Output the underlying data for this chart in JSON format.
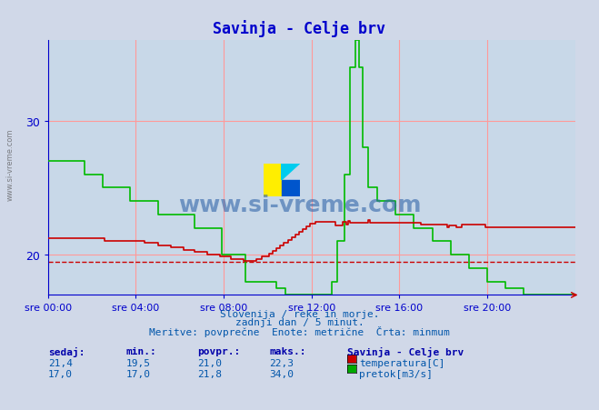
{
  "title": "Savinja - Celje brv",
  "title_color": "#0000cc",
  "bg_color": "#d0d8e8",
  "plot_bg_color": "#c8d8e8",
  "grid_color_h": "#ff9999",
  "grid_color_v": "#ff9999",
  "x_ticks_labels": [
    "sre 00:00",
    "sre 04:00",
    "sre 08:00",
    "sre 12:00",
    "sre 16:00",
    "sre 20:00"
  ],
  "x_ticks_pos": [
    0,
    48,
    96,
    144,
    192,
    240
  ],
  "y_ticks": [
    20,
    30
  ],
  "ylim": [
    17,
    36
  ],
  "xlim": [
    0,
    288
  ],
  "min_line_value": 19.5,
  "footer_lines": [
    "Slovenija / reke in morje.",
    "zadnji dan / 5 minut.",
    "Meritve: povprečne  Enote: metrične  Črta: minmum"
  ],
  "table_headers": [
    "sedaj:",
    "min.:",
    "povpr.:",
    "maks.:"
  ],
  "table_row1": [
    "21,4",
    "19,5",
    "21,0",
    "22,3"
  ],
  "table_row2": [
    "17,0",
    "17,0",
    "21,8",
    "34,0"
  ],
  "legend_title": "Savinja - Celje brv",
  "legend_items": [
    "temperatura[C]",
    "pretok[m3/s]"
  ],
  "legend_colors": [
    "#cc0000",
    "#00aa00"
  ],
  "temp_color": "#cc0000",
  "flow_color": "#00bb00",
  "watermark_text": "www.si-vreme.com",
  "watermark_color": "#3366aa",
  "watermark_alpha": 0.5
}
